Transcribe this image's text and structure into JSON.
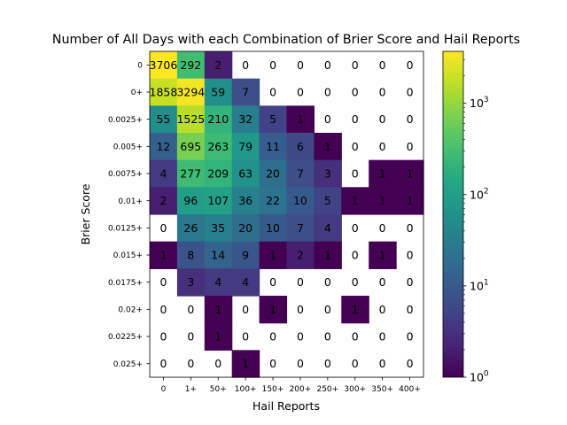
{
  "chart_data": {
    "type": "heatmap",
    "title": "Number of All Days with each Combination of Brier Score and Hail Reports",
    "xlabel": "Hail Reports",
    "ylabel": "Brier Score",
    "x_categories": [
      "0",
      "1+",
      "50+",
      "100+",
      "150+",
      "200+",
      "250+",
      "300+",
      "350+",
      "400+"
    ],
    "y_categories": [
      "0",
      "0+",
      "0.0025+",
      "0.005+",
      "0.0075+",
      "0.01+",
      "0.0125+",
      "0.015+",
      "0.0175+",
      "0.02+",
      "0.0225+",
      "0.025+"
    ],
    "values": [
      [
        3706,
        292,
        2,
        0,
        0,
        0,
        0,
        0,
        0,
        0
      ],
      [
        1858,
        3294,
        59,
        7,
        0,
        0,
        0,
        0,
        0,
        0
      ],
      [
        55,
        1525,
        210,
        32,
        5,
        1,
        0,
        0,
        0,
        0
      ],
      [
        12,
        695,
        263,
        79,
        11,
        6,
        1,
        0,
        0,
        0
      ],
      [
        4,
        277,
        209,
        63,
        20,
        7,
        3,
        0,
        1,
        1
      ],
      [
        2,
        96,
        107,
        36,
        22,
        10,
        5,
        1,
        1,
        1
      ],
      [
        0,
        26,
        35,
        20,
        10,
        7,
        4,
        0,
        0,
        0
      ],
      [
        1,
        8,
        14,
        9,
        1,
        2,
        1,
        0,
        1,
        0
      ],
      [
        0,
        3,
        4,
        4,
        0,
        0,
        0,
        0,
        0,
        0
      ],
      [
        0,
        0,
        1,
        0,
        1,
        0,
        0,
        1,
        0,
        0
      ],
      [
        0,
        0,
        1,
        0,
        0,
        0,
        0,
        0,
        0,
        0
      ],
      [
        0,
        0,
        0,
        1,
        0,
        0,
        0,
        0,
        0,
        0
      ]
    ],
    "colorscale": "viridis",
    "color_scale_type": "log",
    "color_range": [
      1,
      3706
    ],
    "zero_cells": "blank",
    "colorbar": {
      "position": "right",
      "ticks": [
        {
          "value": 1,
          "base": "10",
          "exp": "0"
        },
        {
          "value": 10,
          "base": "10",
          "exp": "1"
        },
        {
          "value": 100,
          "base": "10",
          "exp": "2"
        },
        {
          "value": 1000,
          "base": "10",
          "exp": "3"
        }
      ]
    },
    "grid": false
  }
}
